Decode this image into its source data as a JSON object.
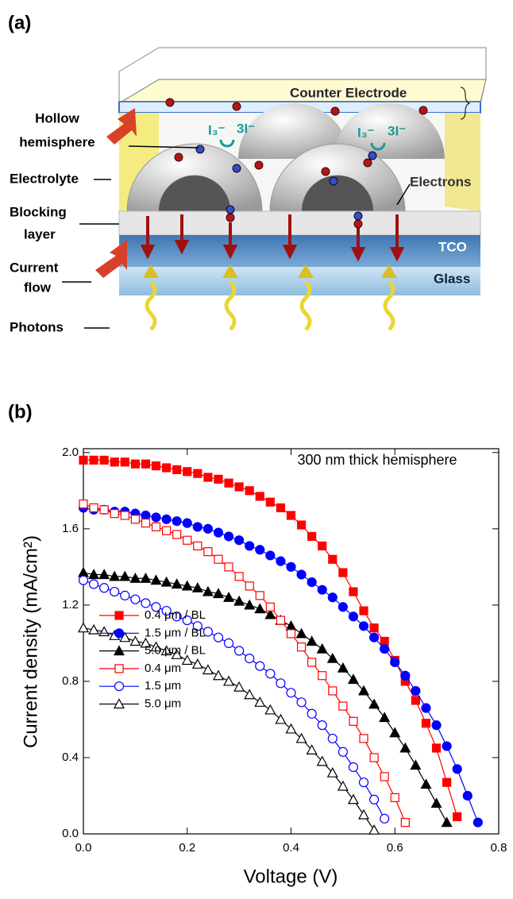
{
  "panel_a": {
    "label": "(a)",
    "counter_electrode": "Counter Electrode",
    "hollow_hemisphere": [
      "Hollow",
      "hemisphere"
    ],
    "electrolyte": "Electrolyte",
    "blocking_layer": [
      "Blocking",
      "layer"
    ],
    "current_flow": [
      "Current",
      "flow"
    ],
    "photons": "Photons",
    "electrons": "Electrons",
    "tco": "TCO",
    "glass": "Glass",
    "redox_left": [
      "I₃⁻",
      "3I⁻"
    ],
    "redox_right": [
      "I₃⁻",
      "3I⁻"
    ]
  },
  "chart_data": {
    "type": "line",
    "label": "(b)",
    "annotation": "300 nm thick hemisphere",
    "x_label": "Voltage (V)",
    "y_label": "Current density (mA/cm²)",
    "xlim": [
      0,
      0.8
    ],
    "ylim": [
      0,
      2.02
    ],
    "xticks": [
      {
        "value": 0,
        "label": "0.0"
      },
      0.2,
      0.4,
      0.6,
      0.8
    ],
    "yticks": [
      {
        "value": 0,
        "label": "0.0"
      },
      0.4,
      0.8,
      1.2,
      1.6,
      {
        "value": 2,
        "label": "2.0"
      }
    ],
    "legend": "lower left",
    "x": [
      0,
      0.02,
      0.04,
      0.06,
      0.08,
      0.1,
      0.12,
      0.14,
      0.16,
      0.18,
      0.2,
      0.22,
      0.24,
      0.26,
      0.28,
      0.3,
      0.32,
      0.34,
      0.36,
      0.38,
      0.4,
      0.42,
      0.44,
      0.46,
      0.48,
      0.5,
      0.52,
      0.54,
      0.56,
      0.58,
      0.6,
      0.62,
      0.64,
      0.66,
      0.68,
      0.7,
      0.72,
      0.74,
      0.76
    ],
    "series": [
      {
        "name": "0.4 μm / BL",
        "color": "#ff0000",
        "marker": "square",
        "filled": true,
        "values": [
          1.96,
          1.96,
          1.96,
          1.95,
          1.95,
          1.94,
          1.94,
          1.93,
          1.92,
          1.91,
          1.9,
          1.89,
          1.87,
          1.86,
          1.84,
          1.82,
          1.8,
          1.77,
          1.74,
          1.71,
          1.67,
          1.62,
          1.56,
          1.51,
          1.44,
          1.37,
          1.27,
          1.17,
          1.08,
          1.01,
          0.91,
          0.8,
          0.7,
          0.58,
          0.45,
          0.27,
          0.09,
          null,
          null
        ]
      },
      {
        "name": "1.5 μm / BL",
        "color": "#0000ff",
        "marker": "circle",
        "filled": true,
        "values": [
          1.71,
          1.7,
          1.7,
          1.69,
          1.69,
          1.68,
          1.67,
          1.66,
          1.65,
          1.64,
          1.63,
          1.61,
          1.6,
          1.58,
          1.56,
          1.54,
          1.51,
          1.49,
          1.46,
          1.43,
          1.4,
          1.36,
          1.32,
          1.28,
          1.24,
          1.19,
          1.14,
          1.09,
          1.03,
          0.97,
          0.9,
          0.83,
          0.75,
          0.66,
          0.57,
          0.46,
          0.34,
          0.2,
          0.06
        ]
      },
      {
        "name": "5.0 μm / BL",
        "color": "#000000",
        "marker": "triangle",
        "filled": true,
        "values": [
          1.37,
          1.36,
          1.36,
          1.35,
          1.35,
          1.34,
          1.34,
          1.33,
          1.32,
          1.31,
          1.3,
          1.29,
          1.27,
          1.26,
          1.24,
          1.22,
          1.2,
          1.18,
          1.15,
          1.12,
          1.09,
          1.05,
          1.01,
          0.97,
          0.92,
          0.87,
          0.81,
          0.75,
          0.68,
          0.61,
          0.53,
          0.45,
          0.36,
          0.26,
          0.16,
          0.06,
          null,
          null,
          null
        ]
      },
      {
        "name": "0.4 μm",
        "color": "#ff0000",
        "marker": "square",
        "filled": false,
        "values": [
          1.73,
          1.71,
          1.7,
          1.68,
          1.67,
          1.65,
          1.63,
          1.61,
          1.59,
          1.57,
          1.54,
          1.51,
          1.48,
          1.44,
          1.4,
          1.35,
          1.3,
          1.25,
          1.19,
          1.12,
          1.05,
          0.98,
          0.9,
          0.83,
          0.75,
          0.67,
          0.59,
          0.5,
          0.4,
          0.3,
          0.19,
          0.06,
          null,
          null,
          null,
          null,
          null,
          null,
          null
        ]
      },
      {
        "name": "1.5 μm",
        "color": "#0000ff",
        "marker": "circle",
        "filled": false,
        "values": [
          1.33,
          1.31,
          1.29,
          1.27,
          1.25,
          1.23,
          1.21,
          1.19,
          1.17,
          1.14,
          1.12,
          1.09,
          1.06,
          1.03,
          1.0,
          0.96,
          0.92,
          0.88,
          0.84,
          0.79,
          0.74,
          0.69,
          0.63,
          0.57,
          0.5,
          0.43,
          0.35,
          0.27,
          0.18,
          0.08,
          null,
          null,
          null,
          null,
          null,
          null,
          null,
          null,
          null
        ]
      },
      {
        "name": "5.0 μm",
        "color": "#000000",
        "marker": "triangle",
        "filled": false,
        "values": [
          1.08,
          1.07,
          1.06,
          1.04,
          1.03,
          1.01,
          1.0,
          0.98,
          0.96,
          0.94,
          0.91,
          0.89,
          0.86,
          0.83,
          0.8,
          0.77,
          0.73,
          0.69,
          0.65,
          0.6,
          0.55,
          0.5,
          0.44,
          0.38,
          0.32,
          0.25,
          0.18,
          0.1,
          0.02,
          null,
          null,
          null,
          null,
          null,
          null,
          null,
          null,
          null,
          null
        ]
      }
    ]
  }
}
